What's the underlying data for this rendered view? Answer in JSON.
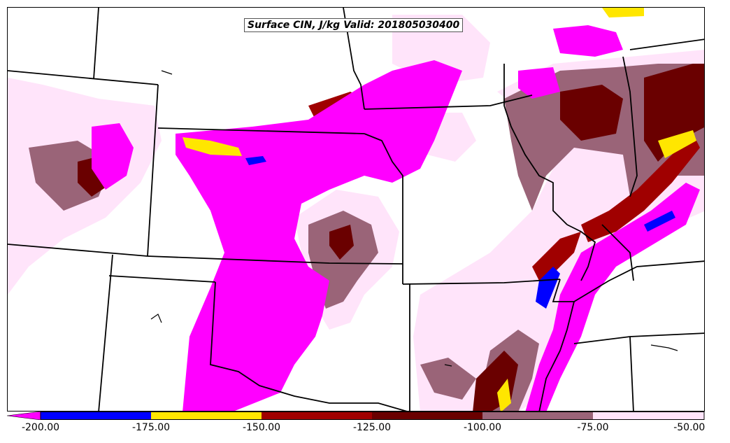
{
  "map": {
    "title": "Surface CIN, J/kg Valid: 201805030400",
    "field": "Surface CIN",
    "units": "J/kg",
    "valid_time": "201805030400"
  },
  "legend": {
    "ticks": [
      "-200.00",
      "-175.00",
      "-150.00",
      "-125.00",
      "-100.00",
      "-75.00",
      "-50.00"
    ],
    "bins": [
      {
        "range": "< -200",
        "color": "#ff00ff"
      },
      {
        "range": "-200 to -175",
        "color": "#0000ff"
      },
      {
        "range": "-175 to -150",
        "color": "#ffe600"
      },
      {
        "range": "-150 to -125",
        "color": "#a00000"
      },
      {
        "range": "-125 to -100",
        "color": "#6a0000"
      },
      {
        "range": "-100 to -75",
        "color": "#9a6478"
      },
      {
        "range": "-75 to -50",
        "color": "#ffe4fa"
      }
    ]
  },
  "colors": {
    "below_-200": "#ff00ff",
    "-200_-175": "#0000ff",
    "-175_-150": "#ffe600",
    "-150_-125": "#a00000",
    "-125_-100": "#6a0000",
    "-100_-75": "#9a6478",
    "-75_-50": "#ffe4fa",
    "background": "#ffffff",
    "borders": "#000000"
  }
}
